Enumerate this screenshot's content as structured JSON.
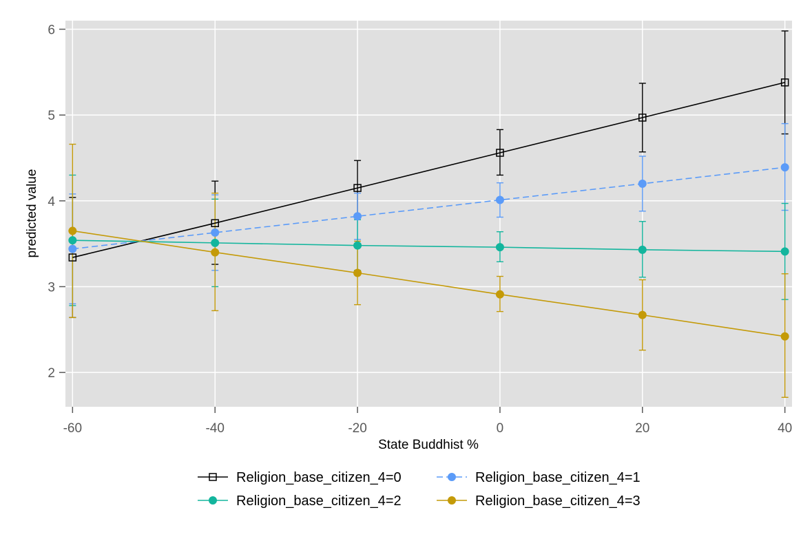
{
  "chart_data": {
    "type": "line",
    "xlabel": "State Buddhist %",
    "ylabel": "predicted value",
    "xlim": [
      -61,
      41
    ],
    "ylim": [
      1.6,
      6.1
    ],
    "x_ticks": [
      -60,
      -40,
      -20,
      0,
      20,
      40
    ],
    "y_ticks": [
      2,
      3,
      4,
      5,
      6
    ],
    "grid": true,
    "legend_position": "bottom",
    "x": [
      -60,
      -40,
      -20,
      0,
      20,
      40
    ],
    "series": [
      {
        "name": "Religion_base_citizen_4=0",
        "color": "#000000",
        "marker": "hollow-square",
        "dashed": false,
        "values": [
          3.34,
          3.74,
          4.15,
          4.56,
          4.97,
          5.38
        ],
        "ci_low": [
          2.64,
          3.26,
          3.82,
          4.3,
          4.57,
          4.78
        ],
        "ci_high": [
          4.04,
          4.23,
          4.47,
          4.83,
          5.37,
          5.98
        ]
      },
      {
        "name": "Religion_base_citizen_4=1",
        "color": "#5b9bf8",
        "marker": "circle",
        "dashed": true,
        "values": [
          3.44,
          3.63,
          3.82,
          4.01,
          4.2,
          4.39
        ],
        "ci_low": [
          2.8,
          3.19,
          3.55,
          3.81,
          3.88,
          3.89
        ],
        "ci_high": [
          4.08,
          4.07,
          4.09,
          4.21,
          4.52,
          4.9
        ]
      },
      {
        "name": "Religion_base_citizen_4=2",
        "color": "#13b59d",
        "marker": "circle",
        "dashed": false,
        "values": [
          3.54,
          3.51,
          3.48,
          3.46,
          3.43,
          3.41
        ],
        "ci_low": [
          2.78,
          3.0,
          3.19,
          3.29,
          3.11,
          2.85
        ],
        "ci_high": [
          4.3,
          4.02,
          3.78,
          3.64,
          3.76,
          3.97
        ]
      },
      {
        "name": "Religion_base_citizen_4=3",
        "color": "#c49a08",
        "marker": "circle",
        "dashed": false,
        "values": [
          3.65,
          3.4,
          3.16,
          2.91,
          2.67,
          2.42
        ],
        "ci_low": [
          2.64,
          2.72,
          2.79,
          2.71,
          2.26,
          1.71
        ],
        "ci_high": [
          4.66,
          4.09,
          3.53,
          3.12,
          3.08,
          3.15
        ]
      }
    ]
  }
}
